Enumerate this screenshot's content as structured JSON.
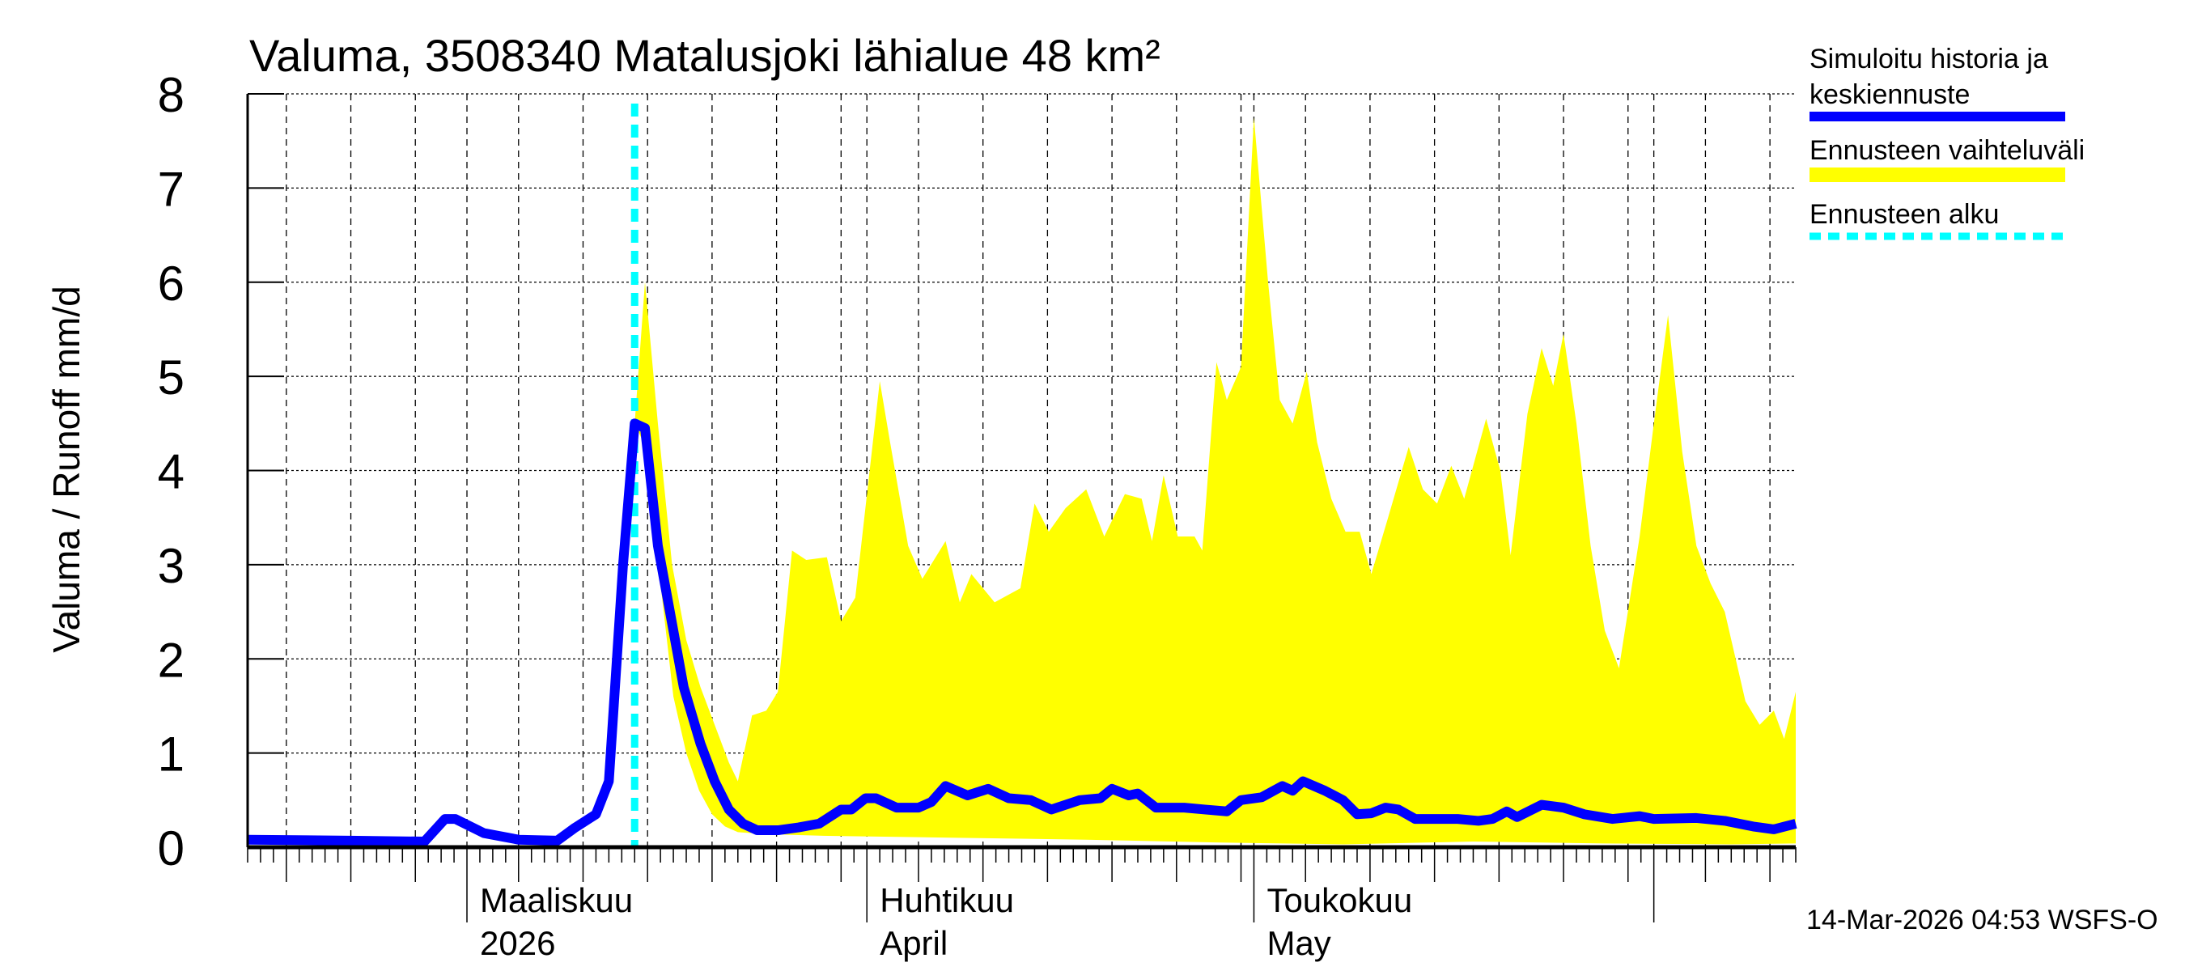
{
  "chart_data": {
    "type": "line",
    "title": "Valuma, 3508340 Matalusjoki lähialue 48 km²",
    "ylabel": "Valuma / Runoff     mm/d",
    "xlabel": "",
    "x_unit": "days since start of plotted period (day 17 = 1 Mar 2026)",
    "xlim": [
      0,
      120
    ],
    "ylim": [
      0,
      8
    ],
    "yticks": [
      "0",
      "1",
      "2",
      "3",
      "4",
      "5",
      "6",
      "7",
      "8"
    ],
    "grid": true,
    "month_labels": [
      {
        "day": 17,
        "line1": "Maaliskuu",
        "line2": "2026"
      },
      {
        "day": 48,
        "line1": "Huhtikuu",
        "line2": "April"
      },
      {
        "day": 78,
        "line1": "Toukokuu",
        "line2": "May"
      }
    ],
    "forecast_start_day": 30,
    "legend": {
      "placement": "right",
      "entries": [
        {
          "label_line1": "Simuloitu historia ja",
          "label_line2": "keskiennuste",
          "color": "#0000ff"
        },
        {
          "label_line1": "Ennusteen vaihteluväli",
          "color": "#ffff00"
        },
        {
          "label_line1": "Ennusteen alku",
          "color": "#00ffff"
        }
      ]
    },
    "series": [
      {
        "name": "Simuloitu historia ja keskiennuste",
        "color": "#0000ff",
        "points": [
          [
            0,
            0.08
          ],
          [
            7.9,
            0.07
          ],
          [
            13.7,
            0.06
          ],
          [
            15.3,
            0.3
          ],
          [
            16.1,
            0.3
          ],
          [
            18.3,
            0.15
          ],
          [
            21,
            0.08
          ],
          [
            24,
            0.07
          ],
          [
            25.3,
            0.2
          ],
          [
            27,
            0.35
          ],
          [
            28,
            0.7
          ],
          [
            29.1,
            3.0
          ],
          [
            30,
            4.5
          ],
          [
            30.8,
            4.45
          ],
          [
            31.8,
            3.2
          ],
          [
            33.8,
            1.7
          ],
          [
            35.1,
            1.1
          ],
          [
            36.2,
            0.7
          ],
          [
            37.3,
            0.4
          ],
          [
            38.4,
            0.25
          ],
          [
            39.5,
            0.18
          ],
          [
            41.1,
            0.18
          ],
          [
            42.7,
            0.21
          ],
          [
            44.3,
            0.25
          ],
          [
            46,
            0.4
          ],
          [
            46.8,
            0.4
          ],
          [
            47.9,
            0.52
          ],
          [
            48.7,
            0.52
          ],
          [
            50.3,
            0.42
          ],
          [
            52,
            0.42
          ],
          [
            53,
            0.48
          ],
          [
            54.1,
            0.65
          ],
          [
            55.8,
            0.55
          ],
          [
            57.4,
            0.62
          ],
          [
            59,
            0.52
          ],
          [
            60.7,
            0.5
          ],
          [
            62.3,
            0.4
          ],
          [
            64.5,
            0.5
          ],
          [
            66.1,
            0.52
          ],
          [
            67,
            0.62
          ],
          [
            68.3,
            0.55
          ],
          [
            69,
            0.57
          ],
          [
            70.4,
            0.42
          ],
          [
            72.6,
            0.42
          ],
          [
            74.2,
            0.4
          ],
          [
            75.9,
            0.38
          ],
          [
            77,
            0.5
          ],
          [
            78.6,
            0.53
          ],
          [
            80.2,
            0.65
          ],
          [
            81,
            0.6
          ],
          [
            81.8,
            0.7
          ],
          [
            83.5,
            0.6
          ],
          [
            84.9,
            0.5
          ],
          [
            86,
            0.35
          ],
          [
            87.1,
            0.36
          ],
          [
            88.2,
            0.42
          ],
          [
            89.2,
            0.4
          ],
          [
            90.5,
            0.3
          ],
          [
            93.8,
            0.3
          ],
          [
            95.4,
            0.28
          ],
          [
            96.5,
            0.3
          ],
          [
            97.6,
            0.38
          ],
          [
            98.4,
            0.32
          ],
          [
            100.3,
            0.45
          ],
          [
            102,
            0.42
          ],
          [
            103.6,
            0.35
          ],
          [
            105.8,
            0.3
          ],
          [
            107.9,
            0.33
          ],
          [
            109,
            0.3
          ],
          [
            112.3,
            0.31
          ],
          [
            114.5,
            0.28
          ],
          [
            116.7,
            0.22
          ],
          [
            118.3,
            0.19
          ],
          [
            120,
            0.25
          ]
        ]
      },
      {
        "name": "Ennusteen vaihteluväli",
        "color": "#ffff00",
        "upper": [
          [
            30,
            4.5
          ],
          [
            30.8,
            6.0
          ],
          [
            31.8,
            4.5
          ],
          [
            32.9,
            3.0
          ],
          [
            34,
            2.2
          ],
          [
            35.1,
            1.7
          ],
          [
            36.2,
            1.3
          ],
          [
            37.3,
            0.9
          ],
          [
            38,
            0.7
          ],
          [
            39.1,
            1.4
          ],
          [
            40.2,
            1.45
          ],
          [
            41.1,
            1.65
          ],
          [
            42.2,
            3.15
          ],
          [
            43.3,
            3.05
          ],
          [
            44.9,
            3.08
          ],
          [
            46,
            2.4
          ],
          [
            47.1,
            2.65
          ],
          [
            49,
            4.95
          ],
          [
            49.8,
            4.3
          ],
          [
            51.2,
            3.2
          ],
          [
            52.3,
            2.85
          ],
          [
            54.1,
            3.25
          ],
          [
            55.2,
            2.6
          ],
          [
            56.1,
            2.9
          ],
          [
            57.9,
            2.6
          ],
          [
            59.9,
            2.75
          ],
          [
            61,
            3.65
          ],
          [
            62.1,
            3.35
          ],
          [
            63.4,
            3.6
          ],
          [
            65,
            3.8
          ],
          [
            66.4,
            3.3
          ],
          [
            68,
            3.75
          ],
          [
            69.3,
            3.7
          ],
          [
            70.1,
            3.25
          ],
          [
            71,
            3.95
          ],
          [
            72.1,
            3.3
          ],
          [
            73.4,
            3.3
          ],
          [
            74,
            3.15
          ],
          [
            75.1,
            5.15
          ],
          [
            75.9,
            4.75
          ],
          [
            77,
            5.1
          ],
          [
            78,
            7.75
          ],
          [
            79.1,
            6.0
          ],
          [
            80,
            4.75
          ],
          [
            81,
            4.5
          ],
          [
            82.1,
            5.05
          ],
          [
            82.9,
            4.3
          ],
          [
            84,
            3.7
          ],
          [
            85.1,
            3.35
          ],
          [
            86.2,
            3.35
          ],
          [
            87.1,
            2.9
          ],
          [
            88.4,
            3.5
          ],
          [
            90,
            4.25
          ],
          [
            91.1,
            3.8
          ],
          [
            92.2,
            3.65
          ],
          [
            93.3,
            4.05
          ],
          [
            94.3,
            3.7
          ],
          [
            96,
            4.55
          ],
          [
            97.1,
            4.0
          ],
          [
            97.9,
            3.1
          ],
          [
            99.2,
            4.6
          ],
          [
            100.3,
            5.3
          ],
          [
            101.2,
            4.9
          ],
          [
            102,
            5.45
          ],
          [
            103,
            4.5
          ],
          [
            104.1,
            3.2
          ],
          [
            105.2,
            2.3
          ],
          [
            106.3,
            1.9
          ],
          [
            107.9,
            3.3
          ],
          [
            109,
            4.5
          ],
          [
            110.1,
            5.65
          ],
          [
            111.2,
            4.2
          ],
          [
            112.3,
            3.2
          ],
          [
            113.4,
            2.8
          ],
          [
            114.5,
            2.5
          ],
          [
            116.1,
            1.55
          ],
          [
            117.2,
            1.3
          ],
          [
            118.3,
            1.45
          ],
          [
            119.1,
            1.15
          ],
          [
            120,
            1.65
          ]
        ],
        "lower": [
          [
            30,
            4.5
          ],
          [
            31,
            4.2
          ],
          [
            32,
            2.8
          ],
          [
            33,
            1.6
          ],
          [
            34,
            1.0
          ],
          [
            35,
            0.6
          ],
          [
            36,
            0.35
          ],
          [
            37,
            0.22
          ],
          [
            38,
            0.16
          ],
          [
            40,
            0.14
          ],
          [
            45,
            0.12
          ],
          [
            55,
            0.1
          ],
          [
            65,
            0.08
          ],
          [
            75,
            0.05
          ],
          [
            85,
            0.03
          ],
          [
            95,
            0.06
          ],
          [
            105,
            0.04
          ],
          [
            115,
            0.03
          ],
          [
            120,
            0.04
          ]
        ]
      }
    ],
    "timestamp": "14-Mar-2026 04:53 WSFS-O"
  }
}
